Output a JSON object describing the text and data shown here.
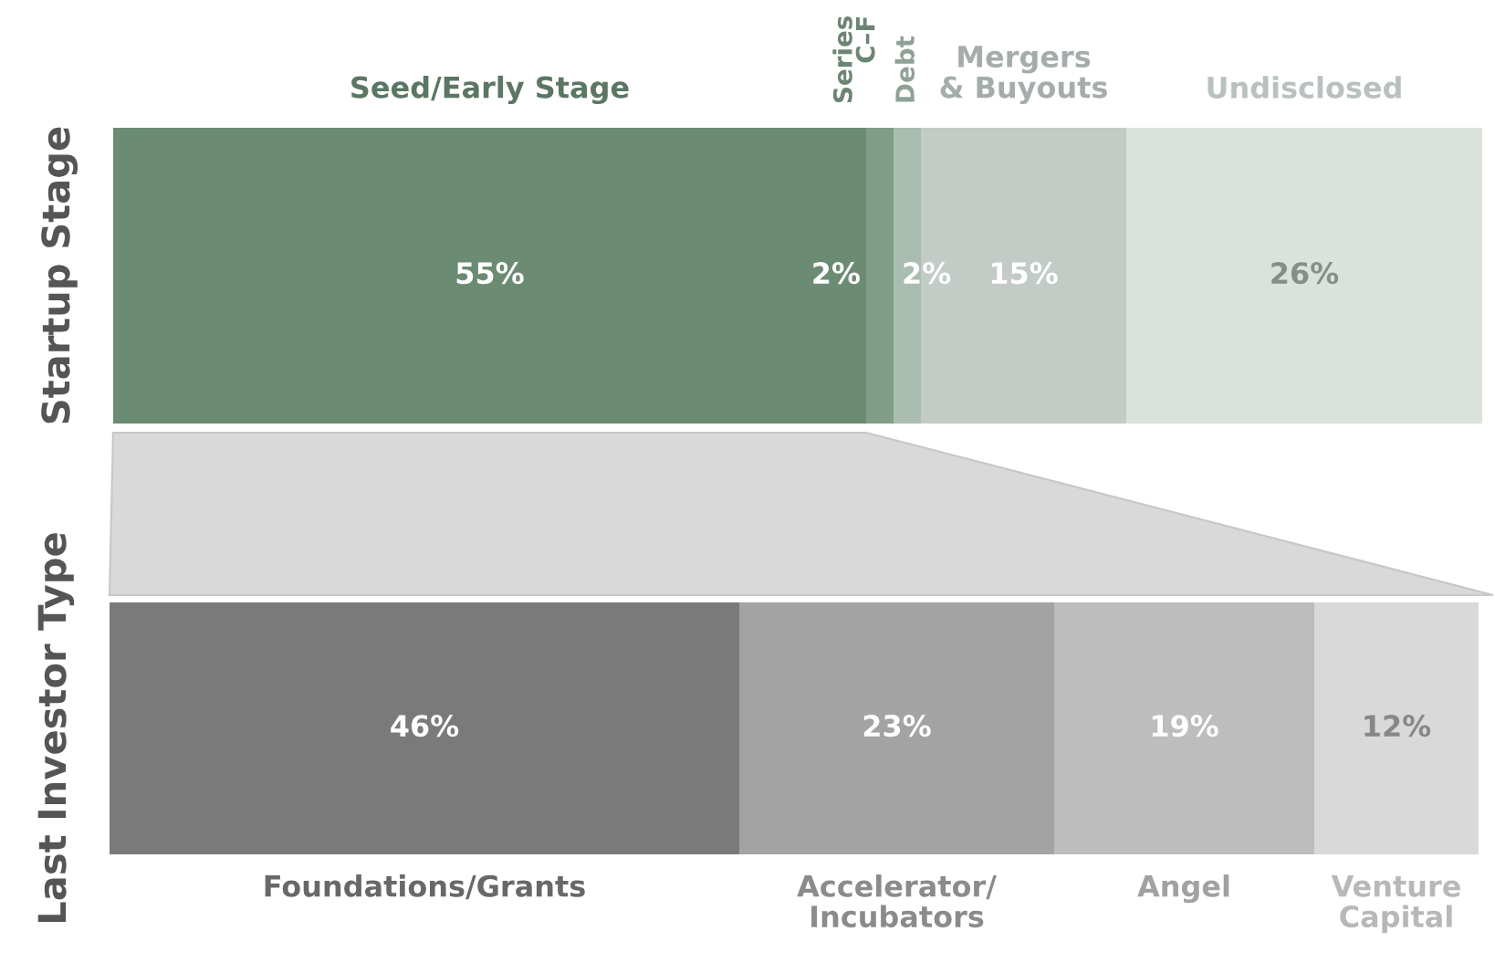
{
  "chart_data": [
    {
      "type": "bar",
      "orientation": "horizontal",
      "stacked": true,
      "ylabel": "Startup Stage",
      "categories": [
        null
      ],
      "tick_labels": false,
      "grid": false,
      "legend": false,
      "series": [
        {
          "name": "Seed/Early Stage",
          "color": "#6b8b73",
          "values": [
            55
          ],
          "value_labels": [
            "55%"
          ]
        },
        {
          "name": "Series\nC–F",
          "color": "#7f9d88",
          "values": [
            2
          ],
          "value_labels": [
            "2%"
          ]
        },
        {
          "name": "Debt",
          "color": "#a9bdb0",
          "values": [
            2
          ],
          "value_labels": [
            "2%"
          ]
        },
        {
          "name": "Mergers\n& Buyouts",
          "color": "#c2cbc6",
          "values": [
            15
          ],
          "value_labels": [
            "15%"
          ]
        },
        {
          "name": "Undisclosed",
          "color": "#d9e3dc",
          "values": [
            26
          ],
          "value_labels": [
            "26%"
          ]
        }
      ]
    },
    {
      "type": "bar",
      "orientation": "horizontal",
      "stacked": true,
      "ylabel": "Last Investor Type",
      "categories": [
        null
      ],
      "tick_labels": false,
      "grid": false,
      "legend": false,
      "series": [
        {
          "name": "Foundations/Grants",
          "color": "#7a7a7a",
          "values": [
            46
          ],
          "value_labels": [
            "46%"
          ]
        },
        {
          "name": "Accelerator/\nIncubators",
          "color": "#a3a3a3",
          "values": [
            23
          ],
          "value_labels": [
            "23%"
          ]
        },
        {
          "name": "Angel",
          "color": "#bdbdbd",
          "values": [
            19
          ],
          "value_labels": [
            "19%"
          ]
        },
        {
          "name": "Venture\nCapital",
          "color": "#d9d9d9",
          "values": [
            12
          ],
          "value_labels": [
            "12%"
          ]
        }
      ]
    }
  ]
}
